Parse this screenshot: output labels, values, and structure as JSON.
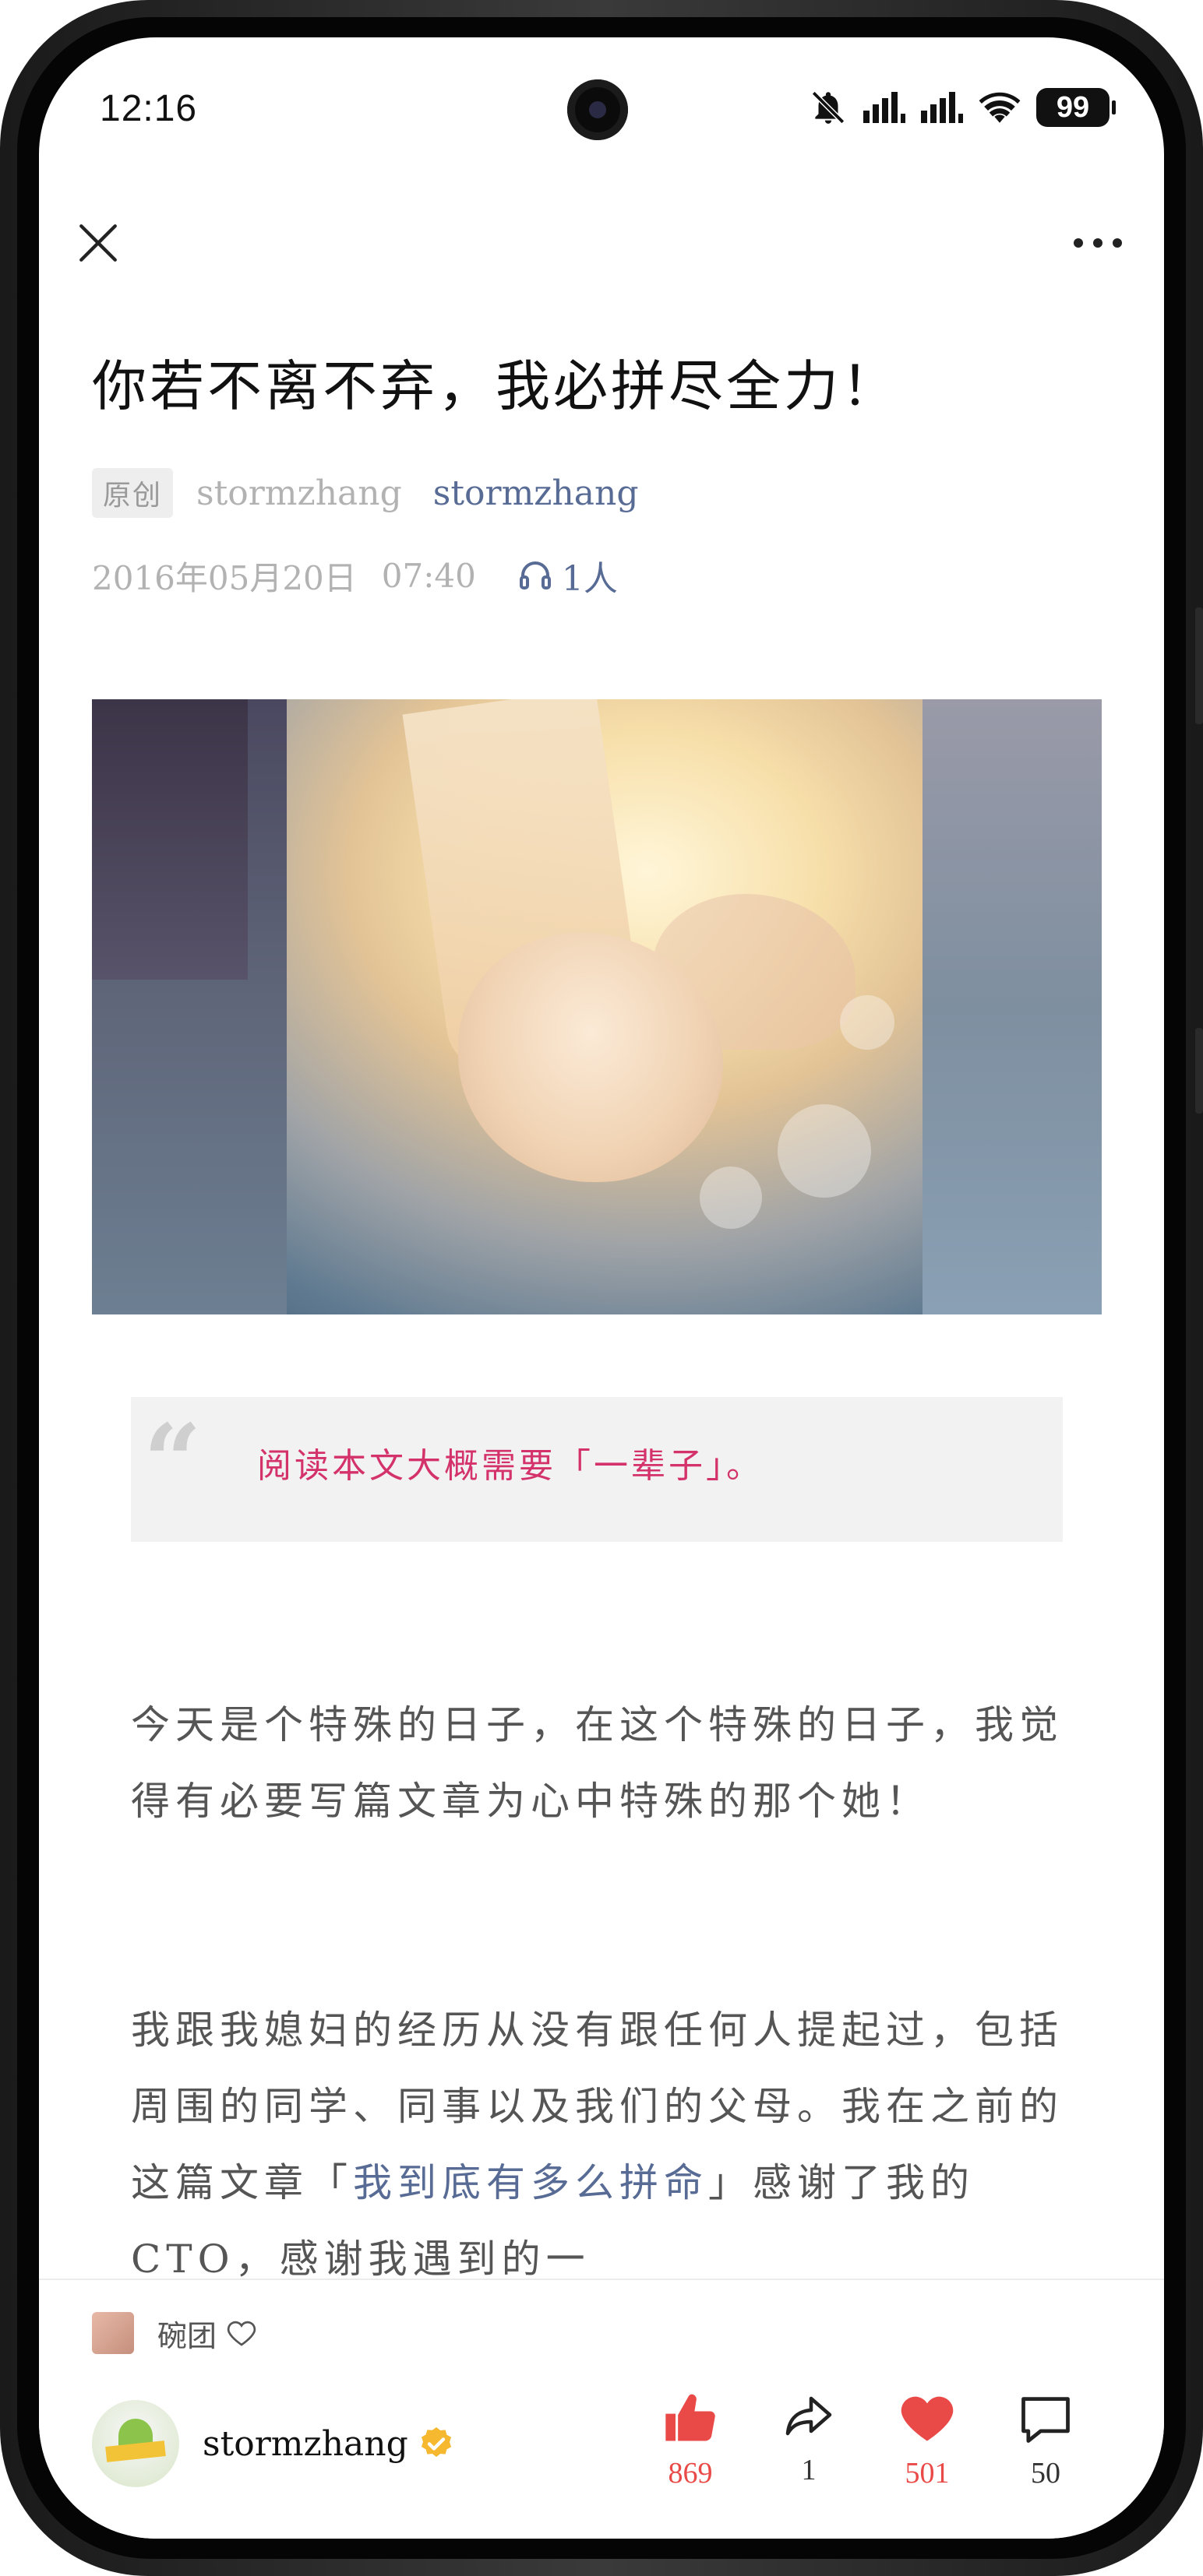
{
  "status_bar": {
    "time": "12:16",
    "battery": "99"
  },
  "article": {
    "title": "你若不离不弃，我必拼尽全力！",
    "badge": "原创",
    "author_plain": "stormzhang",
    "author_link": "stormzhang",
    "date": "2016年05月20日",
    "time": "07:40",
    "listeners": "1人",
    "quote": "阅读本文大概需要「一辈子」。",
    "paragraph1": "今天是个特殊的日子，在这个特殊的日子，我觉得有必要写篇文章为心中特殊的那个她！",
    "paragraph2_before": "我跟我媳妇的经历从没有跟任何人提起过，包括周围的同学、同事以及我们的父母。我在之前的这篇文章「",
    "paragraph2_link": "我到底有多么拼命",
    "paragraph2_after": "」感谢了我的CTO，感谢我遇到的一"
  },
  "bottom": {
    "liker": "碗团",
    "author": "stormzhang",
    "likes": "869",
    "shares": "1",
    "favorites": "501",
    "comments": "50"
  },
  "colors": {
    "link": "#576b95",
    "quote_text": "#d4326a",
    "accent_red": "#e94a48",
    "verified": "#f5b82e"
  }
}
